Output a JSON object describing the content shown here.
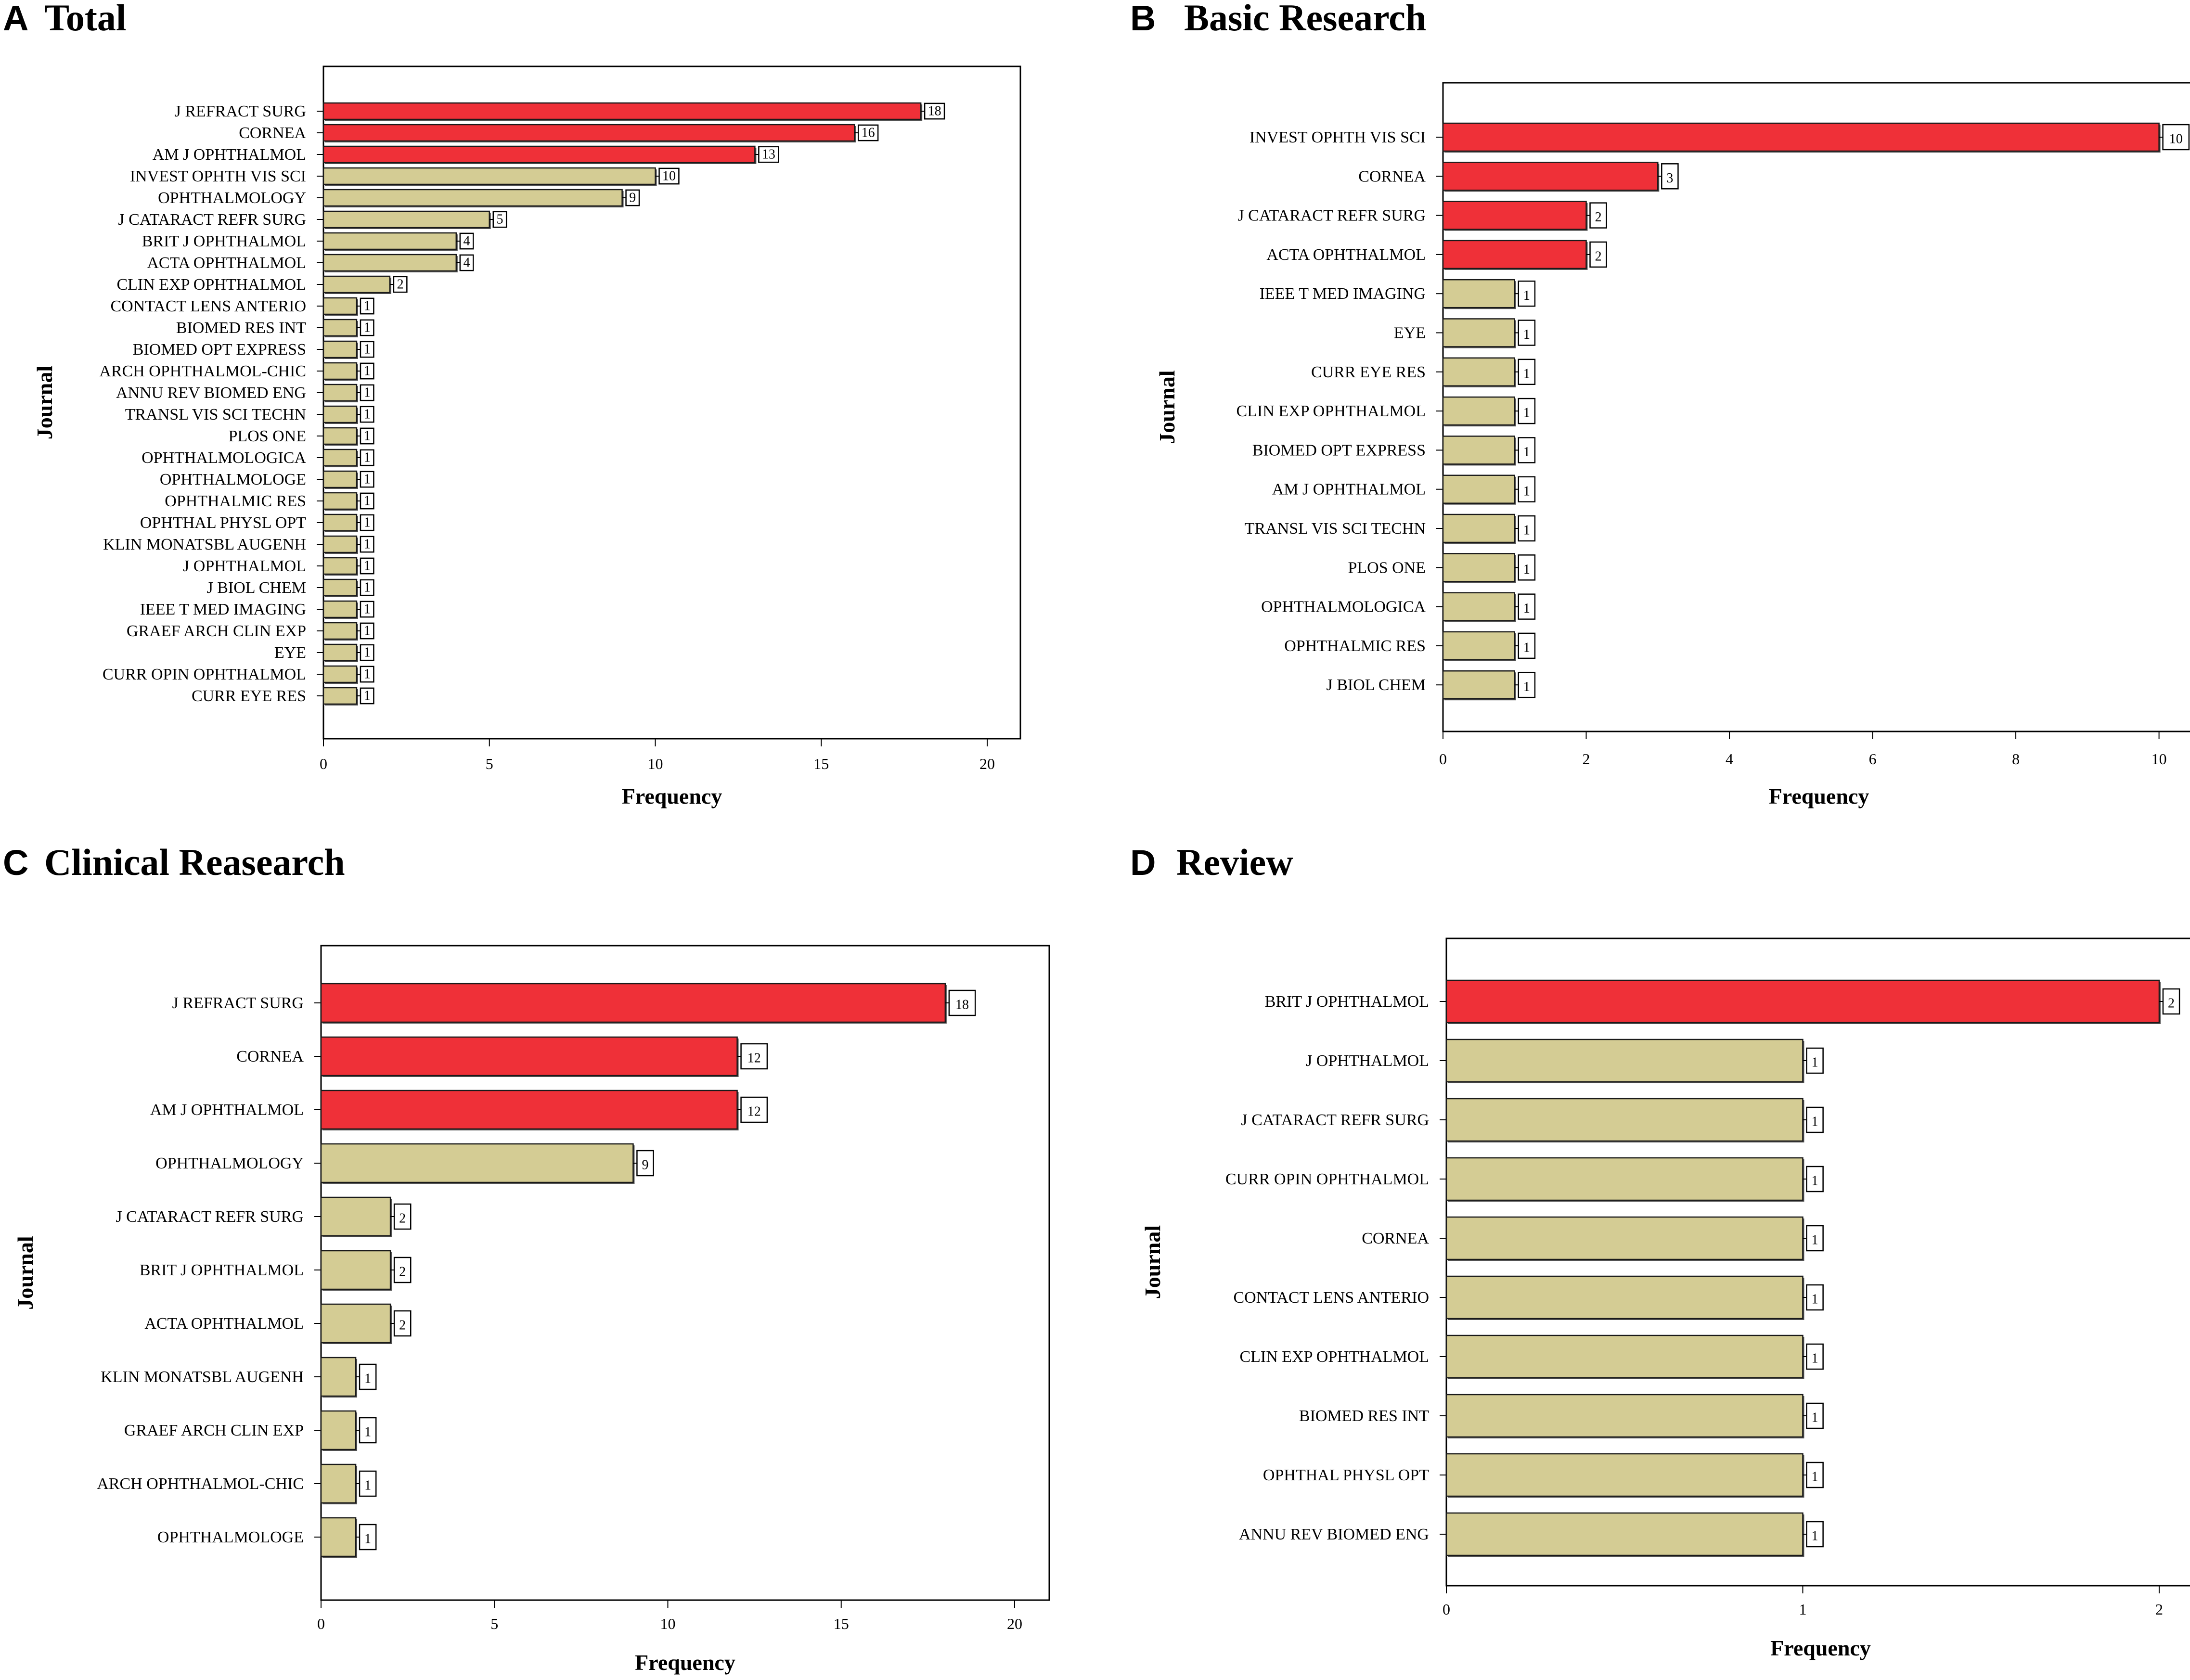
{
  "colors": {
    "highlight": "#ef3038",
    "normal": "#d4cc94",
    "outline": "#1a1a1a"
  },
  "chart_data": [
    {
      "type": "bar",
      "orientation": "horizontal",
      "panel": "A",
      "title": "Total",
      "xlabel": "Frequency",
      "ylabel": "Journal",
      "xlim": [
        0,
        21
      ],
      "xticks": [
        0,
        5,
        10,
        15,
        20
      ],
      "highlight_count": 3,
      "categories": [
        "J REFRACT SURG",
        "CORNEA",
        "AM J OPHTHALMOL",
        "INVEST OPHTH VIS SCI",
        "OPHTHALMOLOGY",
        "J CATARACT REFR SURG",
        "BRIT J OPHTHALMOL",
        "ACTA OPHTHALMOL",
        "CLIN EXP OPHTHALMOL",
        "CONTACT LENS ANTERIO",
        "BIOMED RES INT",
        "BIOMED OPT EXPRESS",
        "ARCH OPHTHALMOL-CHIC",
        "ANNU REV BIOMED ENG",
        "TRANSL VIS SCI TECHN",
        "PLOS ONE",
        "OPHTHALMOLOGICA",
        "OPHTHALMOLOGE",
        "OPHTHALMIC RES",
        "OPHTHAL PHYSL OPT",
        "KLIN MONATSBL AUGENH",
        "J OPHTHALMOL",
        "J BIOL CHEM",
        "IEEE T MED IMAGING",
        "GRAEF ARCH CLIN EXP",
        "EYE",
        "CURR OPIN OPHTHALMOL",
        "CURR EYE RES"
      ],
      "values": [
        18,
        16,
        13,
        10,
        9,
        5,
        4,
        4,
        2,
        1,
        1,
        1,
        1,
        1,
        1,
        1,
        1,
        1,
        1,
        1,
        1,
        1,
        1,
        1,
        1,
        1,
        1,
        1
      ]
    },
    {
      "type": "bar",
      "orientation": "horizontal",
      "panel": "B",
      "title": "Basic Research",
      "xlabel": "Frequency",
      "ylabel": "Journal",
      "xlim": [
        0,
        10.5
      ],
      "xticks": [
        0,
        2,
        4,
        6,
        8,
        10
      ],
      "highlight_count": 4,
      "categories": [
        "INVEST OPHTH VIS SCI",
        "CORNEA",
        "J CATARACT REFR SURG",
        "ACTA OPHTHALMOL",
        "IEEE T MED IMAGING",
        "EYE",
        "CURR EYE RES",
        "CLIN EXP OPHTHALMOL",
        "BIOMED OPT EXPRESS",
        "AM J OPHTHALMOL",
        "TRANSL VIS SCI TECHN",
        "PLOS ONE",
        "OPHTHALMOLOGICA",
        "OPHTHALMIC RES",
        "J BIOL CHEM"
      ],
      "values": [
        10,
        3,
        2,
        2,
        1,
        1,
        1,
        1,
        1,
        1,
        1,
        1,
        1,
        1,
        1
      ]
    },
    {
      "type": "bar",
      "orientation": "horizontal",
      "panel": "C",
      "title": "Clinical Reasearch",
      "xlabel": "Frequency",
      "ylabel": "Journal",
      "xlim": [
        0,
        21
      ],
      "xticks": [
        0,
        5,
        10,
        15,
        20
      ],
      "highlight_count": 3,
      "categories": [
        "J REFRACT SURG",
        "CORNEA",
        "AM J OPHTHALMOL",
        "OPHTHALMOLOGY",
        "J CATARACT REFR SURG",
        "BRIT J OPHTHALMOL",
        "ACTA OPHTHALMOL",
        "KLIN MONATSBL AUGENH",
        "GRAEF ARCH CLIN EXP",
        "ARCH OPHTHALMOL-CHIC",
        "OPHTHALMOLOGE"
      ],
      "values": [
        18,
        12,
        12,
        9,
        2,
        2,
        2,
        1,
        1,
        1,
        1
      ]
    },
    {
      "type": "bar",
      "orientation": "horizontal",
      "panel": "D",
      "title": "Review",
      "xlabel": "Frequency",
      "ylabel": "Journal",
      "xlim": [
        0,
        2.1
      ],
      "xticks": [
        0,
        1,
        2
      ],
      "highlight_count": 1,
      "categories": [
        "BRIT J OPHTHALMOL",
        "J OPHTHALMOL",
        "J CATARACT REFR SURG",
        "CURR OPIN OPHTHALMOL",
        "CORNEA",
        "CONTACT LENS ANTERIO",
        "CLIN EXP OPHTHALMOL",
        "BIOMED RES INT",
        "OPHTHAL PHYSL OPT",
        "ANNU REV BIOMED ENG"
      ],
      "values": [
        2,
        1,
        1,
        1,
        1,
        1,
        1,
        1,
        1,
        1
      ]
    }
  ]
}
